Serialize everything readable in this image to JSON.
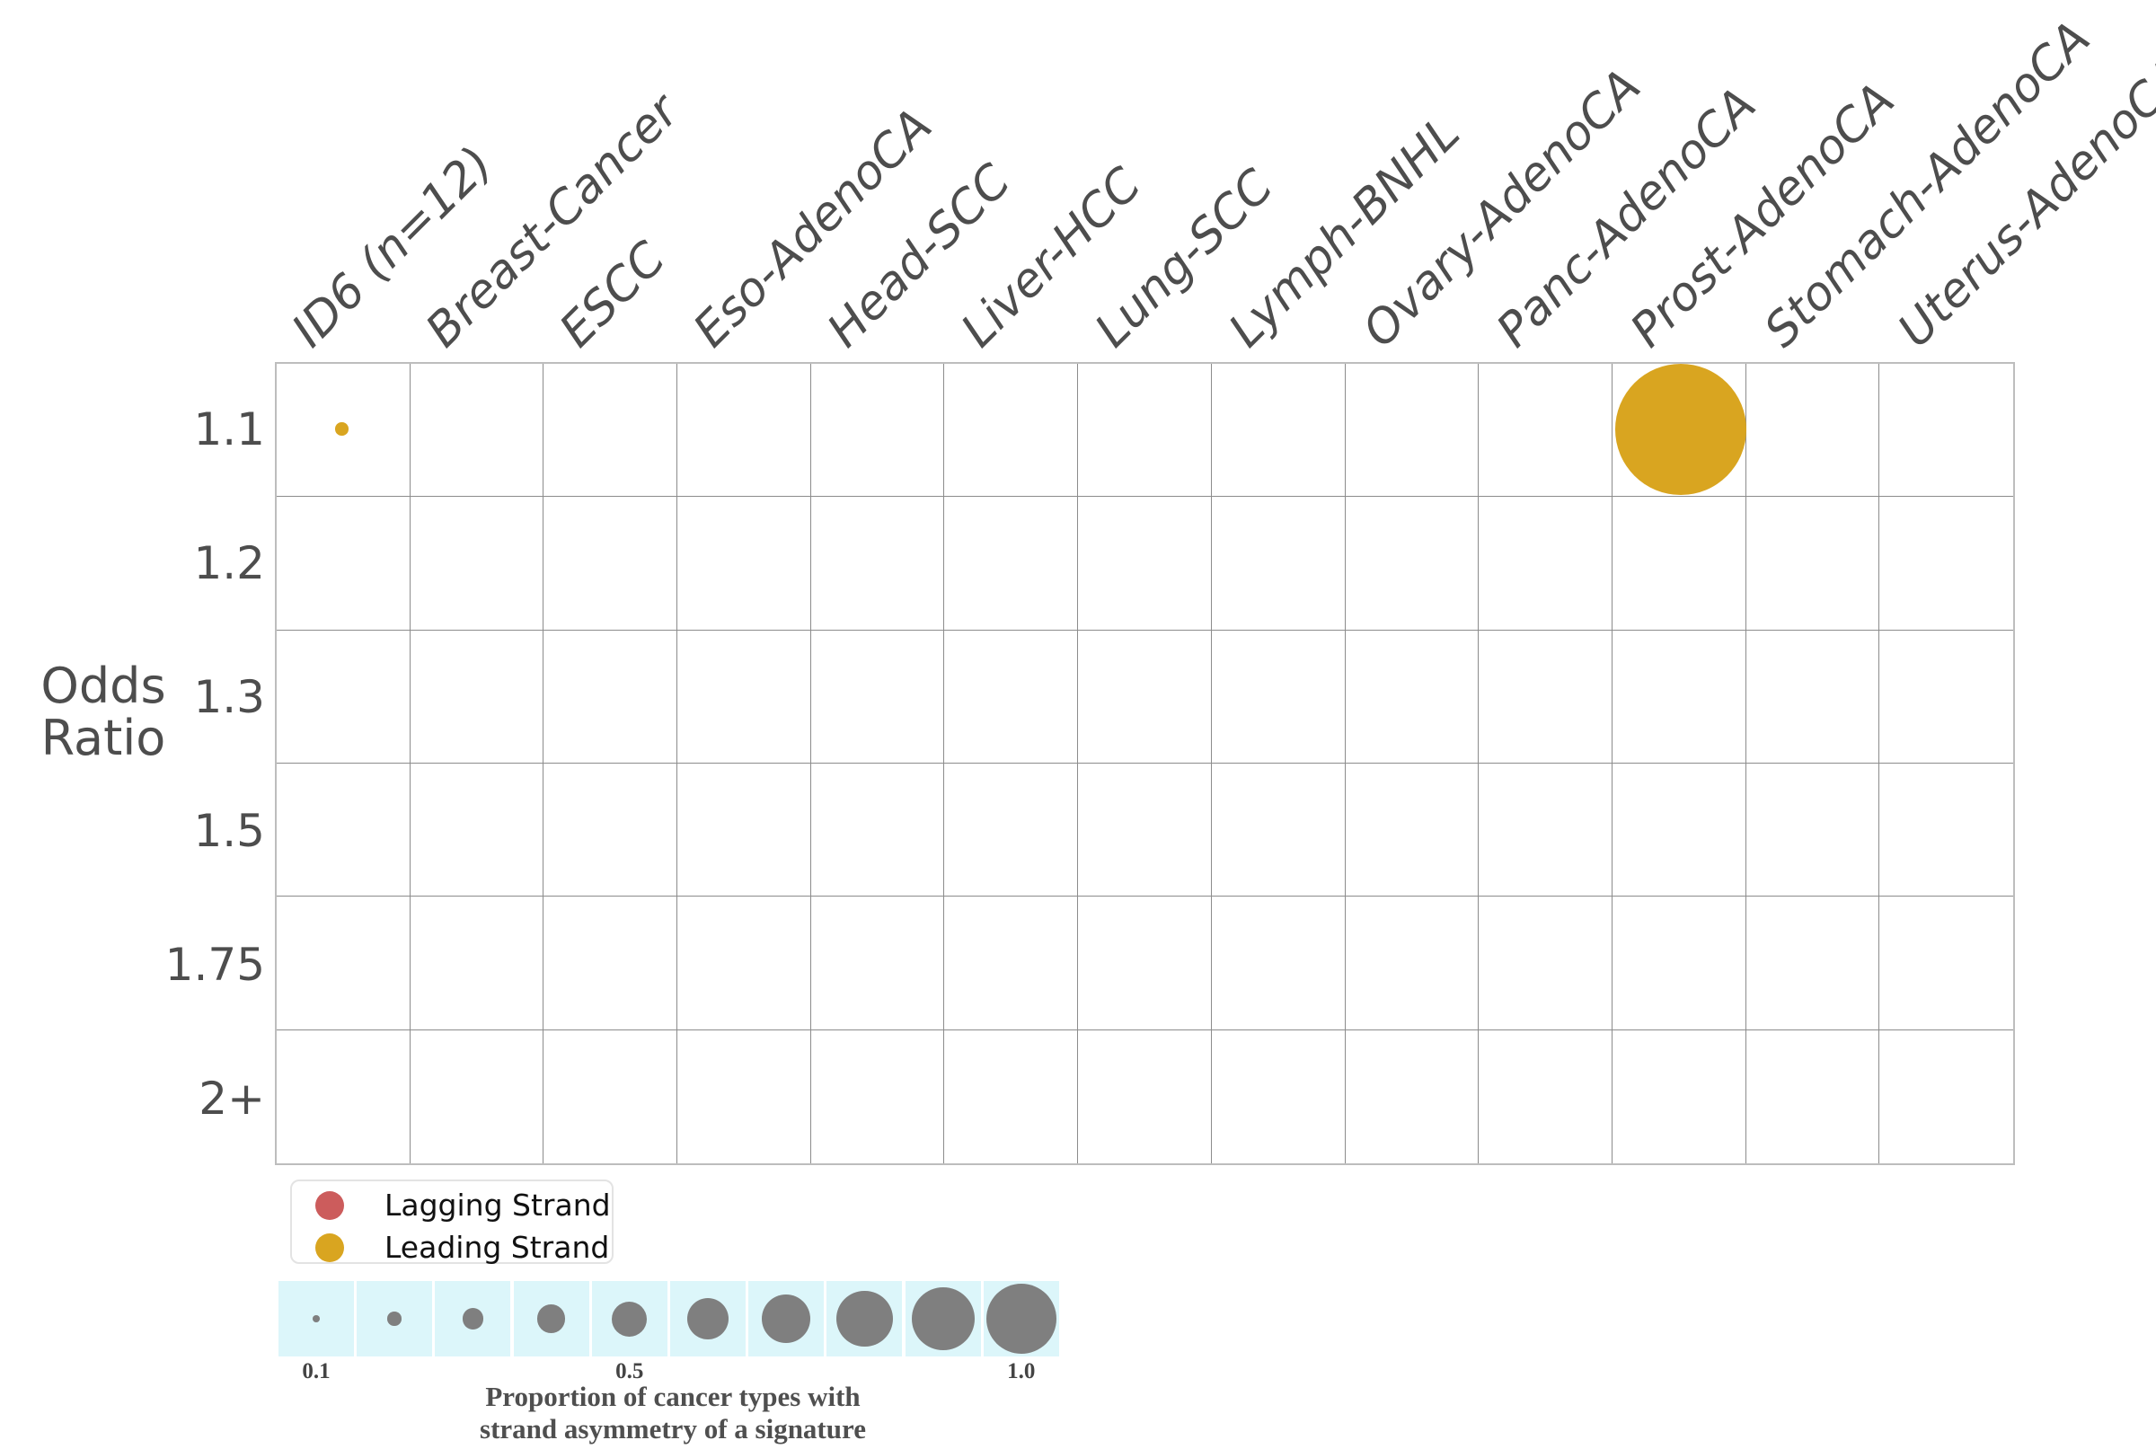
{
  "chart_data": {
    "type": "scatter",
    "subtype": "bubble-matrix",
    "x_categories": [
      "ID6 (n=12)",
      "Breast-Cancer",
      "ESCC",
      "Eso-AdenoCA",
      "Head-SCC",
      "Liver-HCC",
      "Lung-SCC",
      "Lymph-BNHL",
      "Ovary-AdenoCA",
      "Panc-AdenoCA",
      "Prost-AdenoCA",
      "Stomach-AdenoCA",
      "Uterus-AdenoCA"
    ],
    "y_categories": [
      "1.1",
      "1.2",
      "1.3",
      "1.5",
      "1.75",
      "2+"
    ],
    "ylabel": "Odds Ratio",
    "ylabel_lines": [
      "Odds",
      "Ratio"
    ],
    "grid": "on",
    "legend_position": "below-left",
    "points": [
      {
        "column": "ID6 (n=12)",
        "odds_ratio": "1.1",
        "strand": "Leading Strand",
        "proportion": 0.1
      },
      {
        "column": "Prost-AdenoCA",
        "odds_ratio": "1.1",
        "strand": "Leading Strand",
        "proportion": 1.0
      }
    ]
  },
  "legend": {
    "items": [
      {
        "label": "Lagging Strand",
        "color": "#cc5c5c"
      },
      {
        "label": "Leading Strand",
        "color": "#d9a520"
      }
    ]
  },
  "size_legend": {
    "values": [
      0.1,
      0.2,
      0.3,
      0.4,
      0.5,
      0.6,
      0.7,
      0.8,
      0.9,
      1.0
    ],
    "ticks": [
      {
        "label": "0.1",
        "cell_index": 0
      },
      {
        "label": "0.5",
        "cell_index": 4
      },
      {
        "label": "1.0",
        "cell_index": 9
      }
    ],
    "caption_lines": [
      "Proportion of cancer types with",
      "strand asymmetry of a signature"
    ],
    "swatch_bg_color": "#dcf6fa",
    "circle_color": "#7f7f7f"
  }
}
